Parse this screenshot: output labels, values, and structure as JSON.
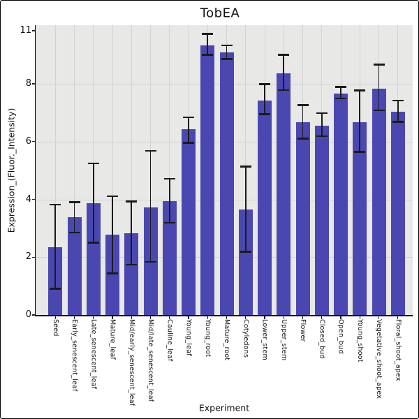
{
  "chart_data": {
    "type": "bar",
    "title": "TobEA",
    "xlabel": "Experiment",
    "ylabel": "Expression_(Fluor._Intensity)",
    "categories": [
      "Seed",
      "Early_senescent_leaf",
      "Late_senescent_leaf",
      "Mature_leaf",
      "Mid/early_senescent_leaf",
      "Mid/late_senescent_leaf",
      "Cauline_leaf",
      "Young_leaf",
      "Young_root",
      "Mature_root",
      "Cotyledons",
      "Lower_stem",
      "Upper_stem",
      "Flower",
      "Closed_bud",
      "Open_bud",
      "Young_shoot",
      "Vegetative_shoot_apex",
      "Floral_shoot_apex"
    ],
    "values": [
      2.35,
      3.38,
      3.87,
      2.78,
      2.82,
      3.72,
      3.95,
      6.43,
      9.33,
      9.08,
      3.64,
      7.42,
      8.36,
      6.67,
      6.55,
      7.67,
      6.67,
      7.84,
      7.03
    ],
    "error_low": [
      0.9,
      2.85,
      2.5,
      1.43,
      1.74,
      1.83,
      3.19,
      5.95,
      9.0,
      8.85,
      2.18,
      6.95,
      7.78,
      6.1,
      6.18,
      7.49,
      5.64,
      7.08,
      6.68
    ],
    "error_high": [
      3.82,
      3.9,
      5.25,
      4.11,
      3.93,
      5.68,
      4.72,
      6.84,
      9.73,
      9.33,
      5.14,
      7.99,
      9.01,
      7.26,
      6.99,
      7.9,
      7.77,
      8.66,
      7.42
    ],
    "y_ticks": [
      0,
      2,
      4,
      6,
      8,
      11
    ],
    "ylim": [
      0,
      11
    ],
    "grid": true,
    "legend_position": "none",
    "bar_color": "#4A48B0",
    "plot_background": "#E8E8E7",
    "grid_color": "#D3D3D3",
    "error_bar_color": "#1B1B1B",
    "axis_color": "#000000",
    "figure_border_color": "#000000"
  }
}
